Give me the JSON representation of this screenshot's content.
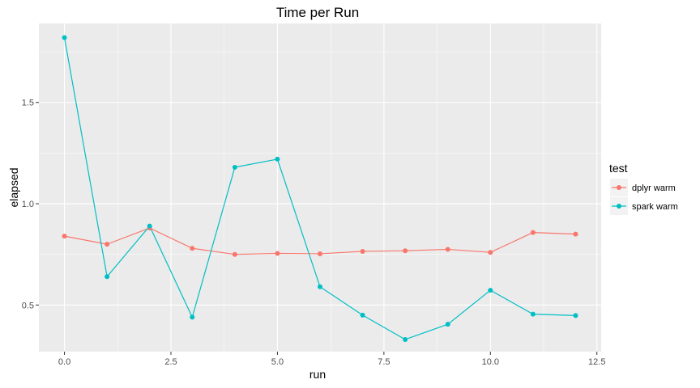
{
  "chart_data": {
    "type": "line",
    "title": "Time per Run",
    "xlabel": "run",
    "ylabel": "elapsed",
    "xlim": [
      -0.6,
      12.6
    ],
    "ylim": [
      0.27,
      1.89
    ],
    "x_ticks": [
      0.0,
      2.5,
      5.0,
      7.5,
      10.0,
      12.5
    ],
    "x_tick_labels": [
      "0.0",
      "2.5",
      "5.0",
      "7.5",
      "10.0",
      "12.5"
    ],
    "y_ticks": [
      0.5,
      1.0,
      1.5
    ],
    "y_tick_labels": [
      "0.5",
      "1.0",
      "1.5"
    ],
    "grid": true,
    "legend_title": "test",
    "legend_position": "right",
    "x": [
      0,
      1,
      2,
      3,
      4,
      5,
      6,
      7,
      8,
      9,
      10,
      11,
      12
    ],
    "series": [
      {
        "name": "dplyr warm",
        "color": "#F8766D",
        "values": [
          0.84,
          0.8,
          0.88,
          0.78,
          0.75,
          0.755,
          0.753,
          0.765,
          0.768,
          0.775,
          0.76,
          0.858,
          0.85
        ]
      },
      {
        "name": "spark warm",
        "color": "#00BFC4",
        "values": [
          1.82,
          0.64,
          0.89,
          0.44,
          1.18,
          1.22,
          0.59,
          0.45,
          0.33,
          0.405,
          0.573,
          0.455,
          0.448
        ]
      }
    ]
  }
}
